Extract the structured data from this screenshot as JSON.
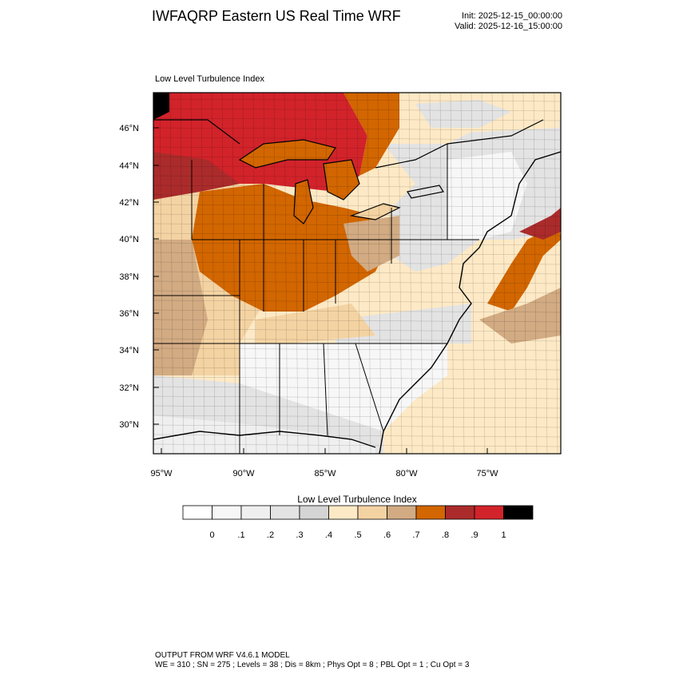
{
  "header": {
    "title": "IWFAQRP Eastern US Real Time WRF",
    "init": "Init: 2025-12-15_00:00:00",
    "valid": "Valid: 2025-12-16_15:00:00"
  },
  "panel": {
    "label": "Low Level Turbulence Index"
  },
  "map": {
    "lat_ticks": [
      "46°N",
      "44°N",
      "42°N",
      "40°N",
      "38°N",
      "36°N",
      "34°N",
      "32°N",
      "30°N"
    ],
    "lon_ticks": [
      "95°W",
      "90°W",
      "85°W",
      "80°W",
      "75°W"
    ]
  },
  "colorbar": {
    "title": "Low Level Turbulence Index",
    "labels": [
      "0",
      ".1",
      ".2",
      ".3",
      ".4",
      ".5",
      ".6",
      ".7",
      ".8",
      ".9",
      "1"
    ],
    "colors": [
      "#ffffff",
      "#f7f7f7",
      "#efefef",
      "#e3e3e3",
      "#d4d4d4",
      "#fde9c5",
      "#f4d3a3",
      "#d2ab83",
      "#d26600",
      "#ab2b2b",
      "#d2232a",
      "#000000"
    ]
  },
  "footer": {
    "line1": "OUTPUT FROM WRF V4.6.1 MODEL",
    "line2": "WE = 310 ; SN = 275 ; Levels = 38 ; Dis = 8km ; Phys Opt = 8 ; PBL Opt = 1 ; Cu Opt = 3"
  }
}
